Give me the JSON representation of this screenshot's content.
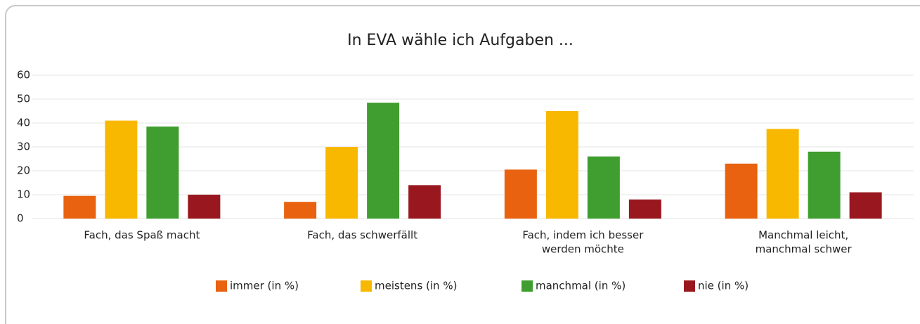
{
  "chart_data": {
    "type": "bar",
    "title": "In EVA wähle ich Aufgaben ...",
    "categories": [
      [
        "Fach, das Spaß macht"
      ],
      [
        "Fach, das schwerfällt"
      ],
      [
        "Fach, indem ich besser",
        "werden möchte"
      ],
      [
        "Manchmal leicht,",
        "manchmal schwer"
      ]
    ],
    "series": [
      {
        "name": "immer (in %)",
        "color": "#e8620f",
        "values": [
          9.5,
          7,
          20.5,
          23
        ]
      },
      {
        "name": "meistens (in %)",
        "color": "#f9b800",
        "values": [
          41,
          30,
          45,
          37.5
        ]
      },
      {
        "name": "manchmal (in %)",
        "color": "#3f9e2f",
        "values": [
          38.5,
          48.5,
          26,
          28
        ]
      },
      {
        "name": "nie (in %)",
        "color": "#99181f",
        "values": [
          10,
          14,
          8,
          11
        ]
      }
    ],
    "ylim": [
      0,
      60
    ],
    "yticks": [
      0,
      10,
      20,
      30,
      40,
      50,
      60
    ],
    "grid": true,
    "legend": "bottom"
  }
}
